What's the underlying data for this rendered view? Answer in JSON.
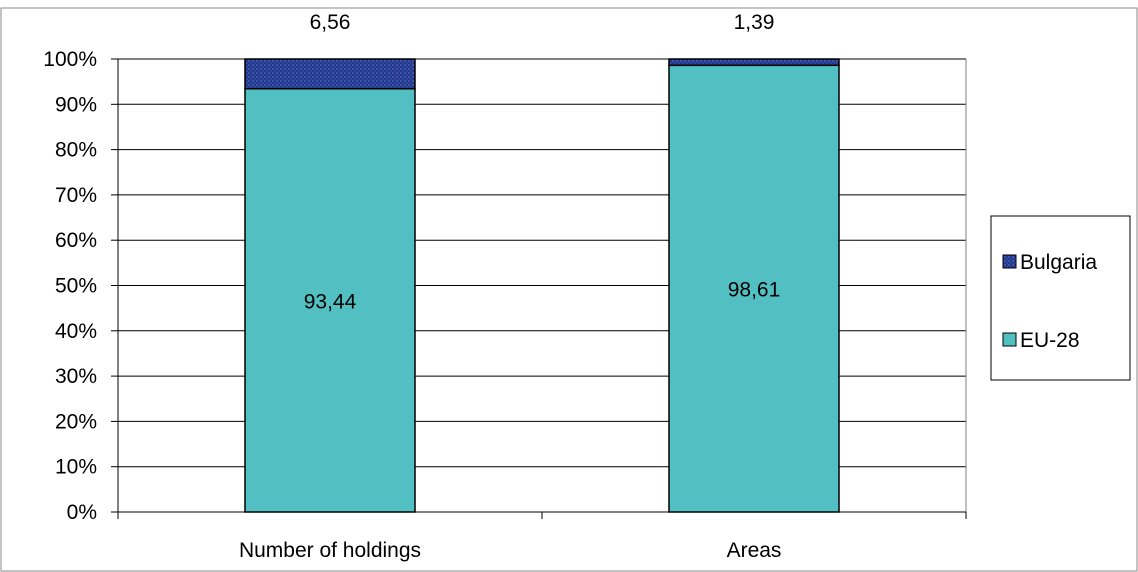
{
  "chart_data": {
    "type": "bar",
    "stacked": true,
    "normalized_percent": true,
    "categories": [
      "Number of holdings",
      "Areas"
    ],
    "series": [
      {
        "name": "EU-28",
        "values": [
          93.44,
          98.61
        ],
        "labels": [
          "93,44",
          "98,61"
        ],
        "color": "#52c0c2",
        "label_position": "center"
      },
      {
        "name": "Bulgaria",
        "values": [
          6.56,
          1.39
        ],
        "labels": [
          "6,56",
          "1,39"
        ],
        "color": "#22388e",
        "label_position": "above"
      }
    ],
    "yticks": [
      "0%",
      "10%",
      "20%",
      "30%",
      "40%",
      "50%",
      "60%",
      "70%",
      "80%",
      "90%",
      "100%"
    ],
    "ylim": [
      0,
      100
    ],
    "title": "",
    "xlabel": "",
    "ylabel": "",
    "grid": true,
    "legend": {
      "position": "right",
      "order": [
        "Bulgaria",
        "EU-28"
      ]
    }
  }
}
